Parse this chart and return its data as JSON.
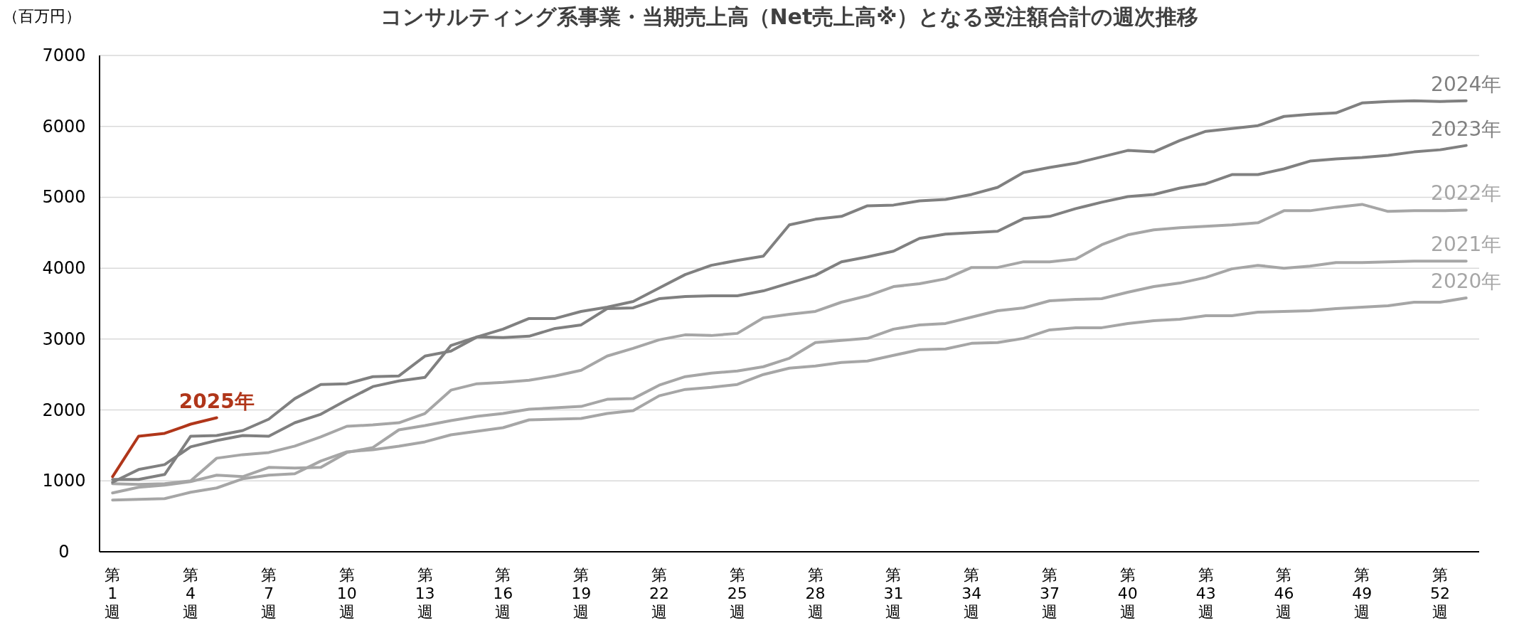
{
  "chart_data": {
    "type": "line",
    "title": "コンサルティング系事業・当期売上高（Net売上高※）となる受注額合計の週次推移",
    "ylabel": "（百万円）",
    "categories": [
      "第1週",
      null,
      null,
      "第4週",
      null,
      null,
      "第7週",
      null,
      null,
      "第10週",
      null,
      null,
      "第13週",
      null,
      null,
      "第16週",
      null,
      null,
      "第19週",
      null,
      null,
      "第22週",
      null,
      null,
      "第25週",
      null,
      null,
      "第28週",
      null,
      null,
      "第31週",
      null,
      null,
      "第34週",
      null,
      null,
      "第37週",
      null,
      null,
      "第40週",
      null,
      null,
      "第43週",
      null,
      null,
      "第46週",
      null,
      null,
      "第49週",
      null,
      null,
      "第52週",
      null
    ],
    "series": [
      {
        "name": "2020年",
        "color": "#a6a6a6",
        "values": [
          730,
          740,
          750,
          840,
          900,
          1030,
          1080,
          1100,
          1280,
          1410,
          1440,
          1490,
          1550,
          1650,
          1700,
          1750,
          1860,
          1870,
          1880,
          1950,
          1990,
          2200,
          2290,
          2320,
          2360,
          2500,
          2590,
          2620,
          2670,
          2690,
          2770,
          2850,
          2860,
          2940,
          2950,
          3010,
          3130,
          3160,
          3160,
          3220,
          3260,
          3280,
          3330,
          3330,
          3380,
          3390,
          3400,
          3430,
          3450,
          3470,
          3520,
          3520,
          3580
        ]
      },
      {
        "name": "2021年",
        "color": "#a6a6a6",
        "values": [
          830,
          910,
          940,
          990,
          1080,
          1060,
          1190,
          1180,
          1190,
          1400,
          1470,
          1720,
          1780,
          1850,
          1910,
          1950,
          2010,
          2030,
          2050,
          2150,
          2160,
          2350,
          2470,
          2520,
          2550,
          2610,
          2730,
          2950,
          2980,
          3010,
          3140,
          3200,
          3220,
          3310,
          3400,
          3440,
          3540,
          3560,
          3570,
          3660,
          3740,
          3790,
          3870,
          3990,
          4040,
          4000,
          4030,
          4080,
          4080,
          4090,
          4100,
          4100,
          4100
        ]
      },
      {
        "name": "2022年",
        "color": "#a6a6a6",
        "values": [
          960,
          950,
          960,
          1000,
          1320,
          1370,
          1400,
          1490,
          1620,
          1770,
          1790,
          1820,
          1950,
          2280,
          2370,
          2390,
          2420,
          2480,
          2560,
          2760,
          2870,
          2990,
          3060,
          3050,
          3080,
          3300,
          3350,
          3390,
          3520,
          3610,
          3740,
          3780,
          3850,
          4010,
          4010,
          4090,
          4090,
          4130,
          4330,
          4470,
          4540,
          4570,
          4590,
          4610,
          4640,
          4810,
          4810,
          4860,
          4900,
          4800,
          4810,
          4810,
          4820
        ]
      },
      {
        "name": "2023年",
        "color": "#808080",
        "values": [
          1020,
          1020,
          1090,
          1630,
          1640,
          1710,
          1870,
          2160,
          2360,
          2370,
          2470,
          2480,
          2760,
          2830,
          3030,
          3020,
          3040,
          3150,
          3200,
          3430,
          3440,
          3570,
          3600,
          3610,
          3610,
          3680,
          3790,
          3900,
          4090,
          4160,
          4240,
          4420,
          4480,
          4500,
          4520,
          4700,
          4730,
          4840,
          4930,
          5010,
          5040,
          5130,
          5190,
          5320,
          5320,
          5400,
          5510,
          5540,
          5560,
          5590,
          5640,
          5670,
          5730
        ]
      },
      {
        "name": "2024年",
        "color": "#808080",
        "values": [
          980,
          1160,
          1230,
          1480,
          1570,
          1640,
          1630,
          1820,
          1940,
          2140,
          2330,
          2410,
          2460,
          2910,
          3030,
          3140,
          3290,
          3290,
          3390,
          3450,
          3530,
          3720,
          3910,
          4040,
          4110,
          4170,
          4610,
          4690,
          4730,
          4880,
          4890,
          4950,
          4970,
          5040,
          5140,
          5350,
          5420,
          5480,
          5570,
          5660,
          5640,
          5800,
          5930,
          5970,
          6010,
          6140,
          6170,
          6190,
          6330,
          6350,
          6360,
          6350,
          6360
        ]
      },
      {
        "name": "2025年",
        "color": "#b0361a",
        "values": [
          1060,
          1630,
          1670,
          1800,
          1890,
          null,
          null,
          null,
          null,
          null,
          null,
          null,
          null,
          null,
          null,
          null,
          null,
          null,
          null,
          null,
          null,
          null,
          null,
          null,
          null,
          null,
          null,
          null,
          null,
          null,
          null,
          null,
          null,
          null,
          null,
          null,
          null,
          null,
          null,
          null,
          null,
          null,
          null,
          null,
          null,
          null,
          null,
          null,
          null,
          null,
          null,
          null,
          null
        ]
      }
    ],
    "ylim": [
      0,
      7000
    ],
    "yticks": [
      0,
      1000,
      2000,
      3000,
      4000,
      5000,
      6000,
      7000
    ],
    "grid": "y",
    "legend": false,
    "marker": "none",
    "line_style": "solid"
  }
}
